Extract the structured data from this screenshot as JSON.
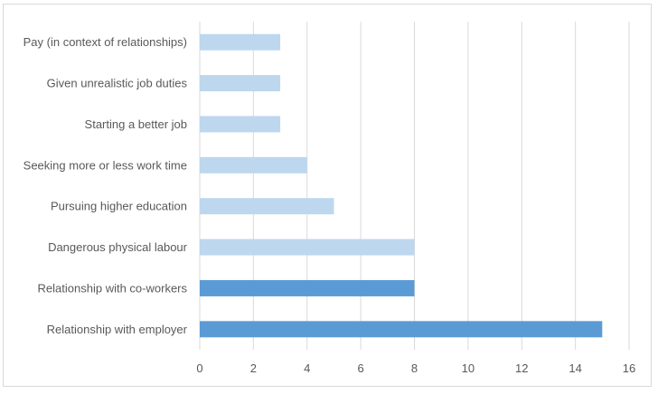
{
  "chart_data": {
    "type": "bar",
    "orientation": "horizontal",
    "categories": [
      "Pay (in context of relationships)",
      "Given unrealistic job duties",
      "Starting a better job",
      "Seeking more or less work time",
      "Pursuing higher education",
      "Dangerous physical labour",
      "Relationship with co-workers",
      "Relationship with employer"
    ],
    "values": [
      3,
      3,
      3,
      4,
      5,
      8,
      8,
      15
    ],
    "bar_colors": [
      "#bdd7ee",
      "#bdd7ee",
      "#bdd7ee",
      "#bdd7ee",
      "#bdd7ee",
      "#bdd7ee",
      "#5b9bd5",
      "#5b9bd5"
    ],
    "x_ticks": [
      "0",
      "2",
      "4",
      "6",
      "8",
      "10",
      "12",
      "14",
      "16"
    ],
    "xlim": [
      0,
      16
    ],
    "grid": "vertical",
    "legend": "none",
    "title": "",
    "xlabel": "",
    "ylabel": ""
  }
}
